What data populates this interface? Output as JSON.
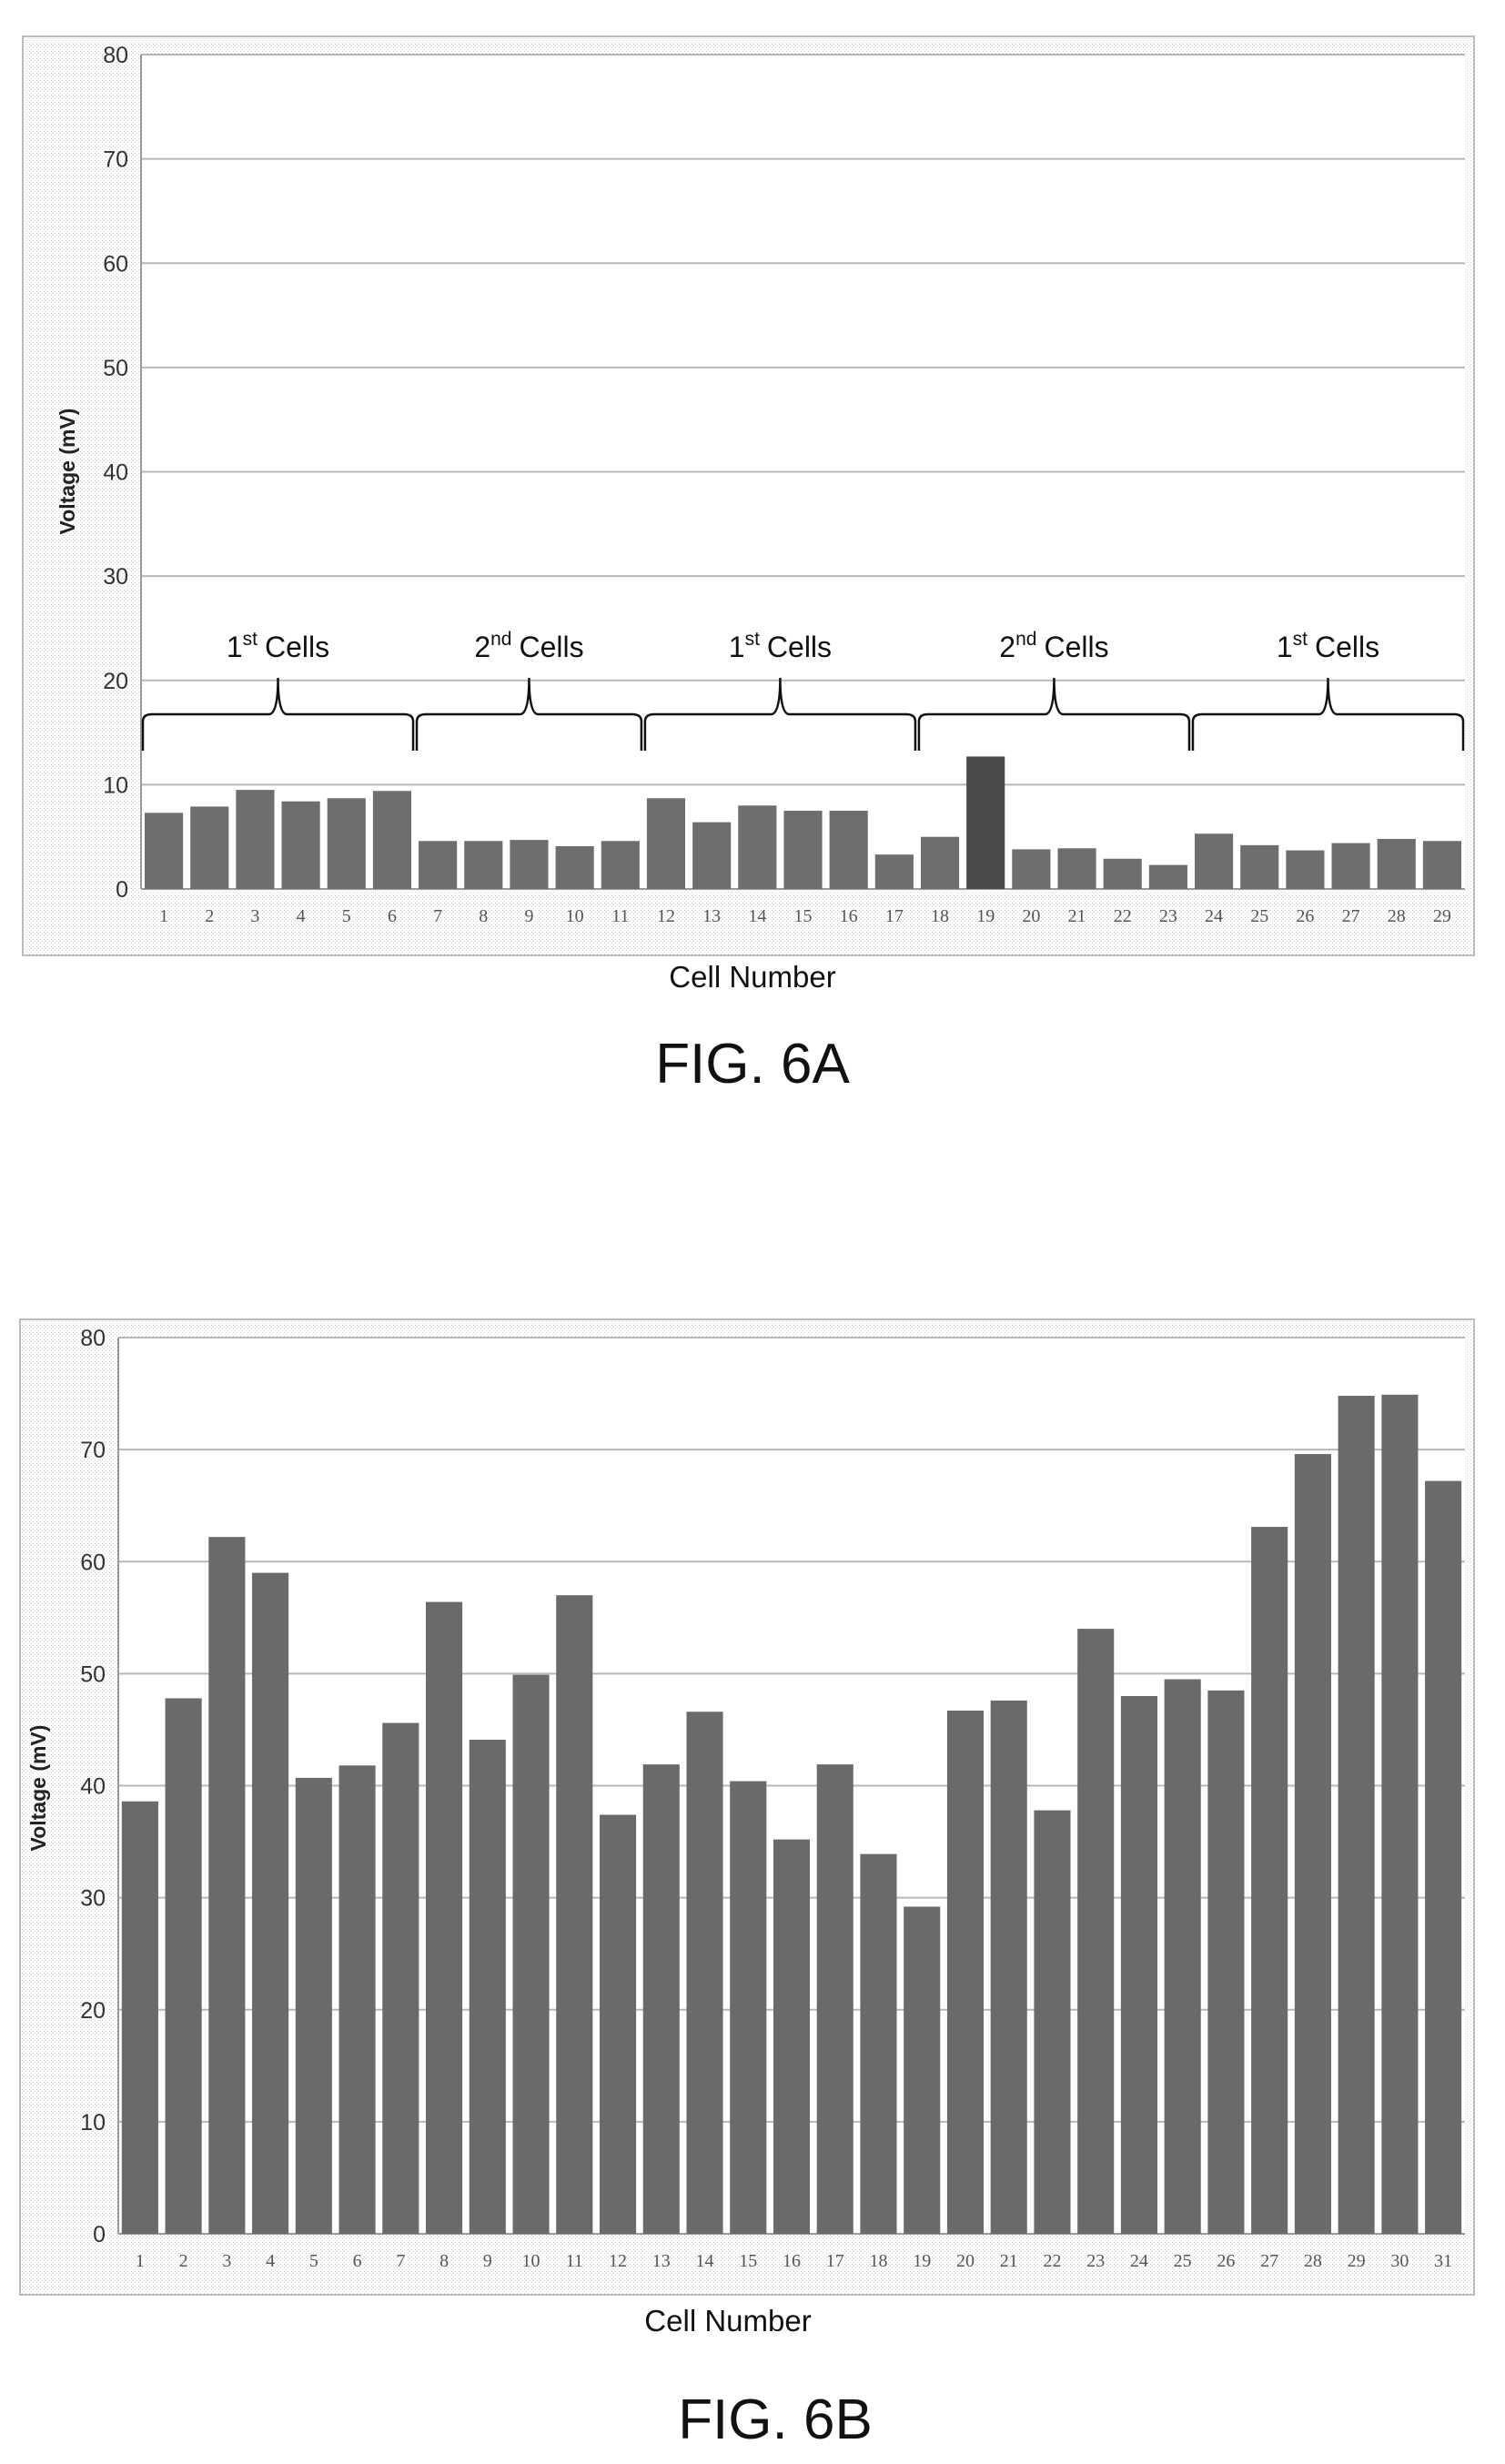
{
  "chart_data": [
    {
      "type": "bar",
      "figure_label": "FIG. 6A",
      "xlabel": "Cell Number",
      "ylabel": "Voltage (mV)",
      "ylim": [
        0,
        80
      ],
      "yticks": [
        0,
        10,
        20,
        30,
        40,
        50,
        60,
        70,
        80
      ],
      "grid": true,
      "categories": [
        "1",
        "2",
        "3",
        "4",
        "5",
        "6",
        "7",
        "8",
        "9",
        "10",
        "11",
        "12",
        "13",
        "14",
        "15",
        "16",
        "17",
        "18",
        "19",
        "20",
        "21",
        "22",
        "23",
        "24",
        "25",
        "26",
        "27",
        "28",
        "29"
      ],
      "values": [
        7.3,
        7.9,
        9.5,
        8.4,
        8.7,
        9.4,
        4.6,
        4.6,
        4.7,
        4.1,
        4.6,
        8.7,
        6.4,
        8.0,
        7.5,
        7.5,
        3.3,
        5.0,
        12.7,
        3.8,
        3.9,
        2.9,
        2.3,
        5.3,
        4.2,
        3.7,
        4.4,
        4.8,
        4.6
      ],
      "annotations": [
        {
          "ordinal": "1",
          "sup": "st",
          "text": "Cells",
          "from": 1,
          "to": 6
        },
        {
          "ordinal": "2",
          "sup": "nd",
          "text": "Cells",
          "from": 7,
          "to": 11
        },
        {
          "ordinal": "1",
          "sup": "st",
          "text": "Cells",
          "from": 12,
          "to": 17
        },
        {
          "ordinal": "2",
          "sup": "nd",
          "text": "Cells",
          "from": 18,
          "to": 23
        },
        {
          "ordinal": "1",
          "sup": "st",
          "text": "Cells",
          "from": 24,
          "to": 29
        }
      ],
      "colors": {
        "bar": "#6e6e6e",
        "bar_highlight": "#4a4a4a",
        "grid": "#b8b8b8"
      }
    },
    {
      "type": "bar",
      "figure_label": "FIG. 6B",
      "xlabel": "Cell Number",
      "ylabel": "Voltage (mV)",
      "ylim": [
        0,
        80
      ],
      "yticks": [
        0,
        10,
        20,
        30,
        40,
        50,
        60,
        70,
        80
      ],
      "grid": true,
      "categories": [
        "1",
        "2",
        "3",
        "4",
        "5",
        "6",
        "7",
        "8",
        "9",
        "10",
        "11",
        "12",
        "13",
        "14",
        "15",
        "16",
        "17",
        "18",
        "19",
        "20",
        "21",
        "22",
        "23",
        "24",
        "25",
        "26",
        "27",
        "28",
        "29",
        "30",
        "31"
      ],
      "values": [
        38.6,
        47.8,
        62.2,
        59.0,
        40.7,
        41.8,
        45.6,
        56.4,
        44.1,
        49.9,
        57.0,
        37.4,
        41.9,
        46.6,
        40.4,
        35.2,
        41.9,
        33.9,
        29.2,
        46.7,
        47.6,
        37.8,
        54.0,
        48.0,
        49.5,
        48.5,
        63.1,
        69.6,
        74.8,
        74.9,
        67.2
      ],
      "colors": {
        "bar": "#6a6a6a",
        "grid": "#b8b8b8"
      }
    }
  ]
}
